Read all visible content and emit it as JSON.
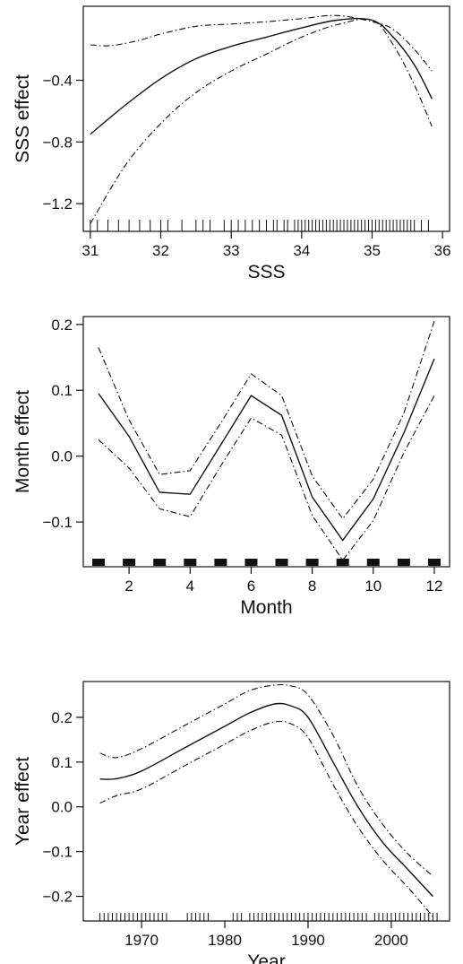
{
  "chart_data": [
    {
      "type": "line",
      "xlabel": "SSS",
      "ylabel": "SSS effect",
      "xlim": [
        30.9,
        36.1
      ],
      "ylim": [
        -1.38,
        0.08
      ],
      "xticks": [
        31,
        32,
        33,
        34,
        35,
        36
      ],
      "xtick_labels": [
        "31",
        "32",
        "33",
        "34",
        "35",
        "36"
      ],
      "yticks": [
        -1.2,
        -0.8,
        -0.4
      ],
      "ytick_labels": [
        "−1.2",
        "−0.8",
        "−0.4"
      ],
      "series": [
        {
          "style": "solid",
          "x": [
            31.0,
            31.5,
            32.0,
            32.5,
            33.0,
            33.5,
            34.0,
            34.5,
            35.0,
            35.3,
            35.6,
            35.85
          ],
          "y": [
            -0.75,
            -0.56,
            -0.39,
            -0.26,
            -0.18,
            -0.12,
            -0.06,
            -0.01,
            -0.01,
            -0.12,
            -0.3,
            -0.52
          ]
        },
        {
          "style": "dashdot",
          "x": [
            31.0,
            31.3,
            31.7,
            32.0,
            32.5,
            33.0,
            33.5,
            34.0,
            34.5,
            35.0,
            35.3,
            35.6,
            35.85
          ],
          "y": [
            -0.17,
            -0.175,
            -0.14,
            -0.1,
            -0.05,
            -0.035,
            -0.02,
            0.0,
            0.02,
            -0.02,
            -0.07,
            -0.2,
            -0.34
          ]
        },
        {
          "style": "dashdot",
          "x": [
            31.0,
            31.5,
            32.0,
            32.5,
            33.0,
            33.5,
            34.0,
            34.5,
            35.0,
            35.3,
            35.6,
            35.85
          ],
          "y": [
            -1.33,
            -0.95,
            -0.68,
            -0.48,
            -0.34,
            -0.23,
            -0.12,
            -0.04,
            -0.01,
            -0.17,
            -0.43,
            -0.7
          ]
        }
      ],
      "rug": [
        31.0,
        31.1,
        31.25,
        31.4,
        31.55,
        31.7,
        31.85,
        32.0,
        32.1,
        32.3,
        32.5,
        32.6,
        32.7,
        32.9,
        33.0,
        33.1,
        33.2,
        33.3,
        33.4,
        33.5,
        33.6,
        33.65,
        33.75,
        33.8,
        33.9,
        33.95,
        34.0,
        34.05,
        34.1,
        34.15,
        34.2,
        34.25,
        34.3,
        34.35,
        34.4,
        34.45,
        34.5,
        34.55,
        34.6,
        34.65,
        34.7,
        34.75,
        34.8,
        34.85,
        34.9,
        34.95,
        35.0,
        35.05,
        35.1,
        35.15,
        35.2,
        35.25,
        35.3,
        35.35,
        35.4,
        35.45,
        35.5,
        35.55,
        35.6,
        35.7,
        35.8
      ]
    },
    {
      "type": "line",
      "xlabel": "Month",
      "ylabel": "Month effect",
      "xlim": [
        0.5,
        12.5
      ],
      "ylim": [
        -0.168,
        0.212
      ],
      "xticks": [
        2,
        4,
        6,
        8,
        10,
        12
      ],
      "xtick_labels": [
        "2",
        "4",
        "6",
        "8",
        "10",
        "12"
      ],
      "yticks": [
        -0.1,
        0.0,
        0.1,
        0.2
      ],
      "ytick_labels": [
        "−0.1",
        "0.0",
        "0.1",
        "0.2"
      ],
      "series": [
        {
          "style": "solid",
          "x": [
            1,
            2,
            3,
            4,
            5,
            6,
            7,
            8,
            9,
            10,
            11,
            12
          ],
          "y": [
            0.095,
            0.03,
            -0.055,
            -0.058,
            0.017,
            0.092,
            0.062,
            -0.062,
            -0.128,
            -0.065,
            0.035,
            0.148
          ]
        },
        {
          "style": "dashdot",
          "x": [
            1,
            2,
            3,
            4,
            5,
            6,
            7,
            8,
            9,
            10,
            11,
            12
          ],
          "y": [
            0.165,
            0.055,
            -0.028,
            -0.022,
            0.05,
            0.125,
            0.092,
            -0.03,
            -0.095,
            -0.035,
            0.065,
            0.205
          ]
        },
        {
          "style": "dashdot",
          "x": [
            1,
            2,
            3,
            4,
            5,
            6,
            7,
            8,
            9,
            10,
            11,
            12
          ],
          "y": [
            0.025,
            -0.018,
            -0.08,
            -0.092,
            -0.015,
            0.058,
            0.032,
            -0.09,
            -0.158,
            -0.098,
            0.005,
            0.092
          ]
        }
      ],
      "rug": [
        1,
        2,
        3,
        4,
        5,
        6,
        7,
        8,
        9,
        10,
        11,
        12
      ]
    },
    {
      "type": "line",
      "xlabel": "Year",
      "ylabel": "Year effect",
      "xlim": [
        1963,
        2007
      ],
      "ylim": [
        -0.255,
        0.28
      ],
      "xticks": [
        1970,
        1980,
        1990,
        2000
      ],
      "xtick_labels": [
        "1970",
        "1980",
        "1990",
        "2000"
      ],
      "yticks": [
        -0.2,
        -0.1,
        0.0,
        0.1,
        0.2
      ],
      "ytick_labels": [
        "−0.2",
        "−0.1",
        "0.0",
        "0.1",
        "0.2"
      ],
      "series": [
        {
          "style": "solid",
          "x": [
            1965,
            1967,
            1970,
            1975,
            1980,
            1983,
            1986,
            1988,
            1990,
            1993,
            1996,
            1999,
            2002,
            2005
          ],
          "y": [
            0.062,
            0.063,
            0.08,
            0.13,
            0.18,
            0.21,
            0.23,
            0.225,
            0.2,
            0.1,
            0.0,
            -0.08,
            -0.14,
            -0.2
          ]
        },
        {
          "style": "dashdot",
          "x": [
            1965,
            1967,
            1970,
            1975,
            1980,
            1983,
            1986,
            1988,
            1990,
            1993,
            1996,
            1999,
            2002,
            2005
          ],
          "y": [
            0.12,
            0.11,
            0.13,
            0.18,
            0.23,
            0.26,
            0.272,
            0.27,
            0.25,
            0.16,
            0.045,
            -0.04,
            -0.105,
            -0.155
          ]
        },
        {
          "style": "dashdot",
          "x": [
            1965,
            1967,
            1970,
            1975,
            1980,
            1983,
            1986,
            1988,
            1990,
            1993,
            1996,
            1999,
            2002,
            2005
          ],
          "y": [
            0.008,
            0.025,
            0.04,
            0.09,
            0.14,
            0.17,
            0.19,
            0.185,
            0.155,
            0.05,
            -0.045,
            -0.12,
            -0.18,
            -0.245
          ]
        }
      ],
      "rug": [
        1965,
        1965.5,
        1966,
        1966.5,
        1967,
        1967.5,
        1968,
        1968.5,
        1969,
        1969.5,
        1970,
        1970.5,
        1971,
        1971.5,
        1972,
        1972.5,
        1973,
        1975.5,
        1976,
        1976.5,
        1977,
        1977.5,
        1978,
        1981,
        1981.5,
        1982,
        1983,
        1983.5,
        1984,
        1984.5,
        1985,
        1985.5,
        1986,
        1986.5,
        1987,
        1987.5,
        1988,
        1988.5,
        1989,
        1989.5,
        1990,
        1990.5,
        1991,
        1991.5,
        1992,
        1992.5,
        1993,
        1993.5,
        1994,
        1994.5,
        1995,
        1995.5,
        1996,
        1996.5,
        1997,
        1998,
        1998.5,
        1999,
        1999.5,
        2000,
        2000.5,
        2001,
        2001.5,
        2002,
        2002.5,
        2003,
        2003.5,
        2004,
        2004.5,
        2005,
        2005.5
      ]
    }
  ]
}
